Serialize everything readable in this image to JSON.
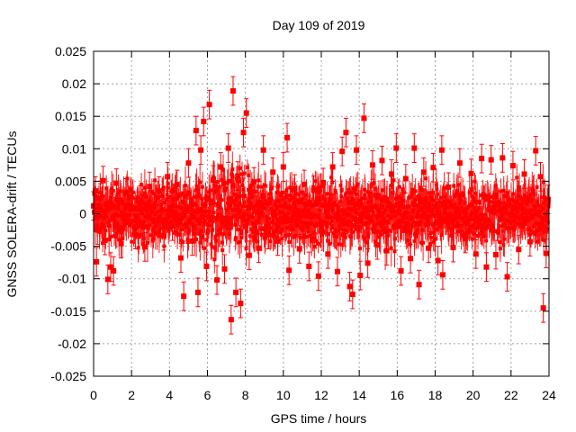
{
  "chart_data": {
    "type": "scatter",
    "title": "Day 109 of 2019",
    "xlabel": "GPS time / hours",
    "ylabel": "GNSS SOLERA-drift / TECUs",
    "xlim": [
      0,
      24
    ],
    "ylim": [
      -0.025,
      0.025
    ],
    "xticks": [
      0,
      2,
      4,
      6,
      8,
      10,
      12,
      14,
      16,
      18,
      20,
      22,
      24
    ],
    "yticks": [
      -0.025,
      -0.02,
      -0.015,
      -0.01,
      -0.005,
      0,
      0.005,
      0.01,
      0.015,
      0.02,
      0.025
    ],
    "xtick_labels": [
      "0",
      "2",
      "4",
      "6",
      "8",
      "10",
      "12",
      "14",
      "16",
      "18",
      "20",
      "22",
      "24"
    ],
    "ytick_labels": [
      "-0.025",
      "-0.02",
      "-0.015",
      "-0.01",
      "-0.005",
      "0",
      "0.005",
      "0.01",
      "0.015",
      "0.02",
      "0.025"
    ],
    "grid": true,
    "series": [
      {
        "name": "SOLERA drift",
        "color": "#ff0000",
        "marker": "square",
        "error_bars": true,
        "points": [
          [
            0.0,
            0.0012
          ],
          [
            0.1,
            0.0035
          ],
          [
            0.15,
            -0.0074
          ],
          [
            0.2,
            -0.0025
          ],
          [
            0.35,
            0.0024
          ],
          [
            0.5,
            0.0051
          ],
          [
            0.6,
            -0.0041
          ],
          [
            0.75,
            -0.0101
          ],
          [
            0.9,
            -0.0082
          ],
          [
            1.05,
            -0.0088
          ],
          [
            1.2,
            0.0047
          ],
          [
            1.45,
            -0.0046
          ],
          [
            1.7,
            0.0032
          ],
          [
            1.95,
            0.0008
          ],
          [
            2.2,
            -0.0032
          ],
          [
            2.45,
            0.0021
          ],
          [
            2.7,
            -0.0051
          ],
          [
            2.95,
            0.0042
          ],
          [
            3.2,
            -0.0012
          ],
          [
            3.45,
            0.0035
          ],
          [
            3.7,
            -0.0034
          ],
          [
            3.9,
            0.0057
          ],
          [
            4.15,
            -0.0019
          ],
          [
            4.4,
            0.0045
          ],
          [
            4.6,
            -0.0068
          ],
          [
            4.75,
            -0.0127
          ],
          [
            5.0,
            0.0078
          ],
          [
            5.2,
            -0.0042
          ],
          [
            5.4,
            0.0128
          ],
          [
            5.5,
            -0.0121
          ],
          [
            5.65,
            0.0098
          ],
          [
            5.8,
            0.0142
          ],
          [
            5.95,
            -0.0081
          ],
          [
            6.1,
            0.0168
          ],
          [
            6.3,
            0.0052
          ],
          [
            6.5,
            -0.0102
          ],
          [
            6.7,
            0.0072
          ],
          [
            6.9,
            -0.0085
          ],
          [
            7.1,
            0.0101
          ],
          [
            7.25,
            -0.0163
          ],
          [
            7.35,
            0.0189
          ],
          [
            7.5,
            -0.0121
          ],
          [
            7.6,
            0.0058
          ],
          [
            7.75,
            -0.0138
          ],
          [
            7.9,
            0.0125
          ],
          [
            8.05,
            0.0155
          ],
          [
            8.2,
            -0.0064
          ],
          [
            8.45,
            0.0049
          ],
          [
            8.7,
            -0.0053
          ],
          [
            8.95,
            0.0098
          ],
          [
            9.2,
            -0.0032
          ],
          [
            9.45,
            0.0064
          ],
          [
            9.7,
            -0.0042
          ],
          [
            10.0,
            0.0072
          ],
          [
            10.2,
            0.0117
          ],
          [
            10.3,
            -0.0087
          ],
          [
            10.6,
            0.0038
          ],
          [
            10.85,
            -0.0054
          ],
          [
            11.1,
            0.0045
          ],
          [
            11.35,
            -0.0081
          ],
          [
            11.6,
            0.0036
          ],
          [
            11.85,
            -0.0096
          ],
          [
            12.1,
            0.0048
          ],
          [
            12.35,
            -0.0062
          ],
          [
            12.6,
            0.0072
          ],
          [
            12.85,
            -0.0089
          ],
          [
            13.1,
            0.0096
          ],
          [
            13.3,
            0.0125
          ],
          [
            13.5,
            -0.0112
          ],
          [
            13.65,
            -0.0124
          ],
          [
            13.85,
            0.0098
          ],
          [
            14.05,
            -0.0095
          ],
          [
            14.25,
            0.0147
          ],
          [
            14.45,
            -0.0076
          ],
          [
            14.7,
            0.0075
          ],
          [
            14.95,
            -0.0048
          ],
          [
            15.2,
            0.0082
          ],
          [
            15.45,
            -0.0057
          ],
          [
            15.7,
            0.0061
          ],
          [
            15.95,
            0.0101
          ],
          [
            16.2,
            -0.0088
          ],
          [
            16.45,
            0.0054
          ],
          [
            16.7,
            -0.0069
          ],
          [
            16.9,
            0.0101
          ],
          [
            17.15,
            -0.0109
          ],
          [
            17.4,
            0.0064
          ],
          [
            17.65,
            -0.0053
          ],
          [
            17.9,
            0.0071
          ],
          [
            18.15,
            -0.0072
          ],
          [
            18.35,
            0.0098
          ],
          [
            18.4,
            -0.0094
          ],
          [
            18.7,
            0.0041
          ],
          [
            18.95,
            -0.0052
          ],
          [
            19.3,
            0.0078
          ],
          [
            19.6,
            -0.0038
          ],
          [
            19.9,
            0.0062
          ],
          [
            20.15,
            -0.0062
          ],
          [
            20.45,
            0.0085
          ],
          [
            20.7,
            -0.0082
          ],
          [
            20.95,
            0.0083
          ],
          [
            21.2,
            -0.0063
          ],
          [
            21.55,
            0.0086
          ],
          [
            21.8,
            -0.0097
          ],
          [
            22.1,
            0.0074
          ],
          [
            22.4,
            -0.0055
          ],
          [
            22.7,
            0.0061
          ],
          [
            23.0,
            -0.0043
          ],
          [
            23.3,
            0.0097
          ],
          [
            23.55,
            0.0057
          ],
          [
            23.7,
            -0.0145
          ],
          [
            23.85,
            -0.0061
          ],
          [
            23.95,
            0.0022
          ]
        ]
      }
    ]
  }
}
